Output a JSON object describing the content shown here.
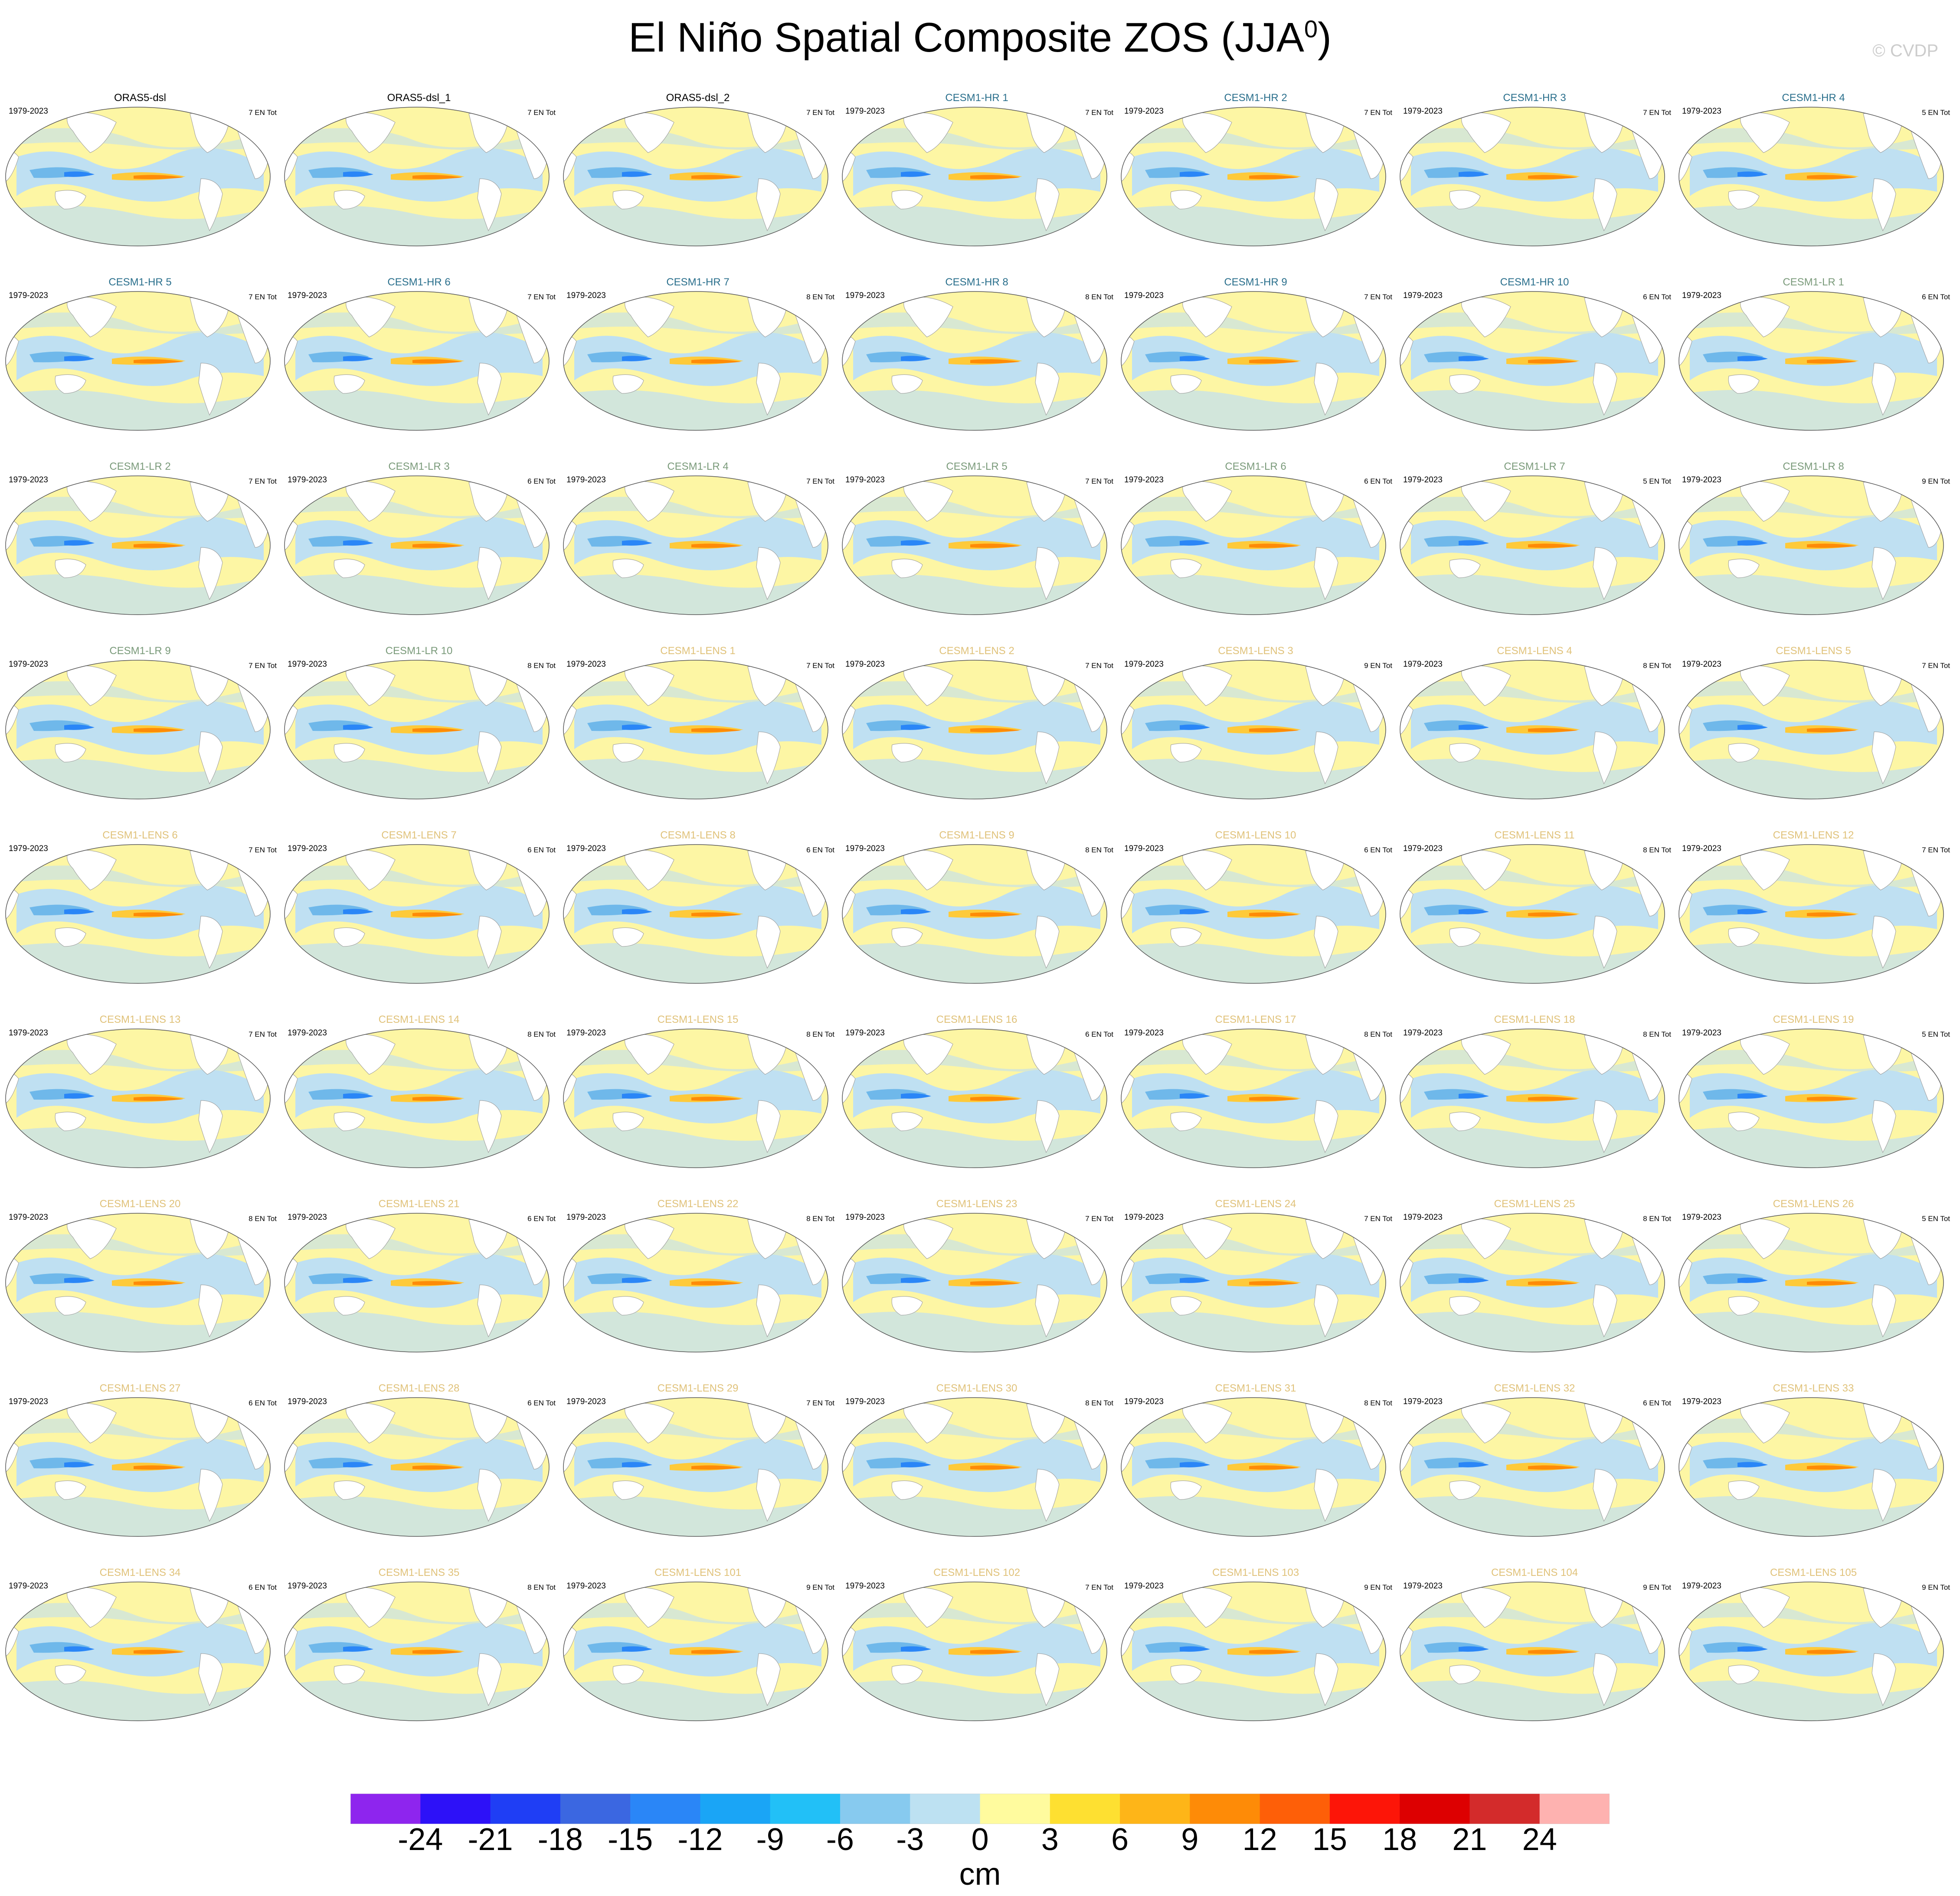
{
  "figure": {
    "title_main": "El Niño Spatial Composite ZOS (JJA",
    "title_sup": "0",
    "title_end": ")",
    "copyright": "© CVDP"
  },
  "panels": [
    {
      "name": "ORAS5-dsl",
      "years": "1979-2023",
      "count": "7 EN Tot",
      "group": "obs"
    },
    {
      "name": "ORAS5-dsl_1",
      "years": "",
      "count": "7 EN Tot",
      "group": "obs"
    },
    {
      "name": "ORAS5-dsl_2",
      "years": "",
      "count": "7 EN Tot",
      "group": "obs"
    },
    {
      "name": "CESM1-HR 1",
      "years": "1979-2023",
      "count": "7 EN Tot",
      "group": "hr"
    },
    {
      "name": "CESM1-HR 2",
      "years": "1979-2023",
      "count": "7 EN Tot",
      "group": "hr"
    },
    {
      "name": "CESM1-HR 3",
      "years": "1979-2023",
      "count": "7 EN Tot",
      "group": "hr"
    },
    {
      "name": "CESM1-HR 4",
      "years": "1979-2023",
      "count": "5 EN Tot",
      "group": "hr"
    },
    {
      "name": "CESM1-HR 5",
      "years": "1979-2023",
      "count": "7 EN Tot",
      "group": "hr"
    },
    {
      "name": "CESM1-HR 6",
      "years": "1979-2023",
      "count": "7 EN Tot",
      "group": "hr"
    },
    {
      "name": "CESM1-HR 7",
      "years": "1979-2023",
      "count": "8 EN Tot",
      "group": "hr"
    },
    {
      "name": "CESM1-HR 8",
      "years": "1979-2023",
      "count": "8 EN Tot",
      "group": "hr"
    },
    {
      "name": "CESM1-HR 9",
      "years": "1979-2023",
      "count": "7 EN Tot",
      "group": "hr"
    },
    {
      "name": "CESM1-HR 10",
      "years": "1979-2023",
      "count": "6 EN Tot",
      "group": "hr"
    },
    {
      "name": "CESM1-LR 1",
      "years": "1979-2023",
      "count": "6 EN Tot",
      "group": "lr"
    },
    {
      "name": "CESM1-LR 2",
      "years": "1979-2023",
      "count": "7 EN Tot",
      "group": "lr"
    },
    {
      "name": "CESM1-LR 3",
      "years": "1979-2023",
      "count": "6 EN Tot",
      "group": "lr"
    },
    {
      "name": "CESM1-LR 4",
      "years": "1979-2023",
      "count": "7 EN Tot",
      "group": "lr"
    },
    {
      "name": "CESM1-LR 5",
      "years": "1979-2023",
      "count": "7 EN Tot",
      "group": "lr"
    },
    {
      "name": "CESM1-LR 6",
      "years": "1979-2023",
      "count": "6 EN Tot",
      "group": "lr"
    },
    {
      "name": "CESM1-LR 7",
      "years": "1979-2023",
      "count": "5 EN Tot",
      "group": "lr"
    },
    {
      "name": "CESM1-LR 8",
      "years": "1979-2023",
      "count": "9 EN Tot",
      "group": "lr"
    },
    {
      "name": "CESM1-LR 9",
      "years": "1979-2023",
      "count": "7 EN Tot",
      "group": "lr"
    },
    {
      "name": "CESM1-LR 10",
      "years": "1979-2023",
      "count": "8 EN Tot",
      "group": "lr"
    },
    {
      "name": "CESM1-LENS 1",
      "years": "1979-2023",
      "count": "7 EN Tot",
      "group": "lens"
    },
    {
      "name": "CESM1-LENS 2",
      "years": "1979-2023",
      "count": "7 EN Tot",
      "group": "lens"
    },
    {
      "name": "CESM1-LENS 3",
      "years": "1979-2023",
      "count": "9 EN Tot",
      "group": "lens"
    },
    {
      "name": "CESM1-LENS 4",
      "years": "1979-2023",
      "count": "8 EN Tot",
      "group": "lens"
    },
    {
      "name": "CESM1-LENS 5",
      "years": "1979-2023",
      "count": "7 EN Tot",
      "group": "lens"
    },
    {
      "name": "CESM1-LENS 6",
      "years": "1979-2023",
      "count": "7 EN Tot",
      "group": "lens"
    },
    {
      "name": "CESM1-LENS 7",
      "years": "1979-2023",
      "count": "6 EN Tot",
      "group": "lens"
    },
    {
      "name": "CESM1-LENS 8",
      "years": "1979-2023",
      "count": "6 EN Tot",
      "group": "lens"
    },
    {
      "name": "CESM1-LENS 9",
      "years": "1979-2023",
      "count": "8 EN Tot",
      "group": "lens"
    },
    {
      "name": "CESM1-LENS 10",
      "years": "1979-2023",
      "count": "6 EN Tot",
      "group": "lens"
    },
    {
      "name": "CESM1-LENS 11",
      "years": "1979-2023",
      "count": "8 EN Tot",
      "group": "lens"
    },
    {
      "name": "CESM1-LENS 12",
      "years": "1979-2023",
      "count": "7 EN Tot",
      "group": "lens"
    },
    {
      "name": "CESM1-LENS 13",
      "years": "1979-2023",
      "count": "7 EN Tot",
      "group": "lens"
    },
    {
      "name": "CESM1-LENS 14",
      "years": "1979-2023",
      "count": "8 EN Tot",
      "group": "lens"
    },
    {
      "name": "CESM1-LENS 15",
      "years": "1979-2023",
      "count": "8 EN Tot",
      "group": "lens"
    },
    {
      "name": "CESM1-LENS 16",
      "years": "1979-2023",
      "count": "6 EN Tot",
      "group": "lens"
    },
    {
      "name": "CESM1-LENS 17",
      "years": "1979-2023",
      "count": "8 EN Tot",
      "group": "lens"
    },
    {
      "name": "CESM1-LENS 18",
      "years": "1979-2023",
      "count": "8 EN Tot",
      "group": "lens"
    },
    {
      "name": "CESM1-LENS 19",
      "years": "1979-2023",
      "count": "5 EN Tot",
      "group": "lens"
    },
    {
      "name": "CESM1-LENS 20",
      "years": "1979-2023",
      "count": "8 EN Tot",
      "group": "lens"
    },
    {
      "name": "CESM1-LENS 21",
      "years": "1979-2023",
      "count": "6 EN Tot",
      "group": "lens"
    },
    {
      "name": "CESM1-LENS 22",
      "years": "1979-2023",
      "count": "8 EN Tot",
      "group": "lens"
    },
    {
      "name": "CESM1-LENS 23",
      "years": "1979-2023",
      "count": "7 EN Tot",
      "group": "lens"
    },
    {
      "name": "CESM1-LENS 24",
      "years": "1979-2023",
      "count": "7 EN Tot",
      "group": "lens"
    },
    {
      "name": "CESM1-LENS 25",
      "years": "1979-2023",
      "count": "8 EN Tot",
      "group": "lens"
    },
    {
      "name": "CESM1-LENS 26",
      "years": "1979-2023",
      "count": "5 EN Tot",
      "group": "lens"
    },
    {
      "name": "CESM1-LENS 27",
      "years": "1979-2023",
      "count": "6 EN Tot",
      "group": "lens"
    },
    {
      "name": "CESM1-LENS 28",
      "years": "1979-2023",
      "count": "6 EN Tot",
      "group": "lens"
    },
    {
      "name": "CESM1-LENS 29",
      "years": "1979-2023",
      "count": "7 EN Tot",
      "group": "lens"
    },
    {
      "name": "CESM1-LENS 30",
      "years": "1979-2023",
      "count": "8 EN Tot",
      "group": "lens"
    },
    {
      "name": "CESM1-LENS 31",
      "years": "1979-2023",
      "count": "8 EN Tot",
      "group": "lens"
    },
    {
      "name": "CESM1-LENS 32",
      "years": "1979-2023",
      "count": "6 EN Tot",
      "group": "lens"
    },
    {
      "name": "CESM1-LENS 33",
      "years": "1979-2023",
      "count": "",
      "group": "lens"
    },
    {
      "name": "CESM1-LENS 34",
      "years": "1979-2023",
      "count": "6 EN Tot",
      "group": "lens"
    },
    {
      "name": "CESM1-LENS 35",
      "years": "1979-2023",
      "count": "8 EN Tot",
      "group": "lens"
    },
    {
      "name": "CESM1-LENS 101",
      "years": "1979-2023",
      "count": "9 EN Tot",
      "group": "lens"
    },
    {
      "name": "CESM1-LENS 102",
      "years": "1979-2023",
      "count": "7 EN Tot",
      "group": "lens"
    },
    {
      "name": "CESM1-LENS 103",
      "years": "1979-2023",
      "count": "9 EN Tot",
      "group": "lens"
    },
    {
      "name": "CESM1-LENS 104",
      "years": "1979-2023",
      "count": "9 EN Tot",
      "group": "lens"
    },
    {
      "name": "CESM1-LENS 105",
      "years": "1979-2023",
      "count": "9 EN Tot",
      "group": "lens"
    }
  ],
  "group_colors": {
    "obs": "#000000",
    "hr": "#2a6f8c",
    "lr": "#7a9a7a",
    "lens": "#e0c27a"
  },
  "colorbar": {
    "units": "cm",
    "tick_labels": [
      "-24",
      "-21",
      "-18",
      "-15",
      "-12",
      "-9",
      "-6",
      "-3",
      "0",
      "3",
      "6",
      "9",
      "12",
      "15",
      "18",
      "21",
      "24"
    ],
    "colors": [
      "#8e25ee",
      "#2d11f8",
      "#1f3ef5",
      "#3b67e1",
      "#2a86f7",
      "#1aa5f6",
      "#22c0f7",
      "#87caef",
      "#bde1f2",
      "#fffb9e",
      "#fee031",
      "#feb518",
      "#fe8b07",
      "#fe5f08",
      "#fd1508",
      "#dd0001",
      "#d32b2b",
      "#feb2b0"
    ]
  }
}
